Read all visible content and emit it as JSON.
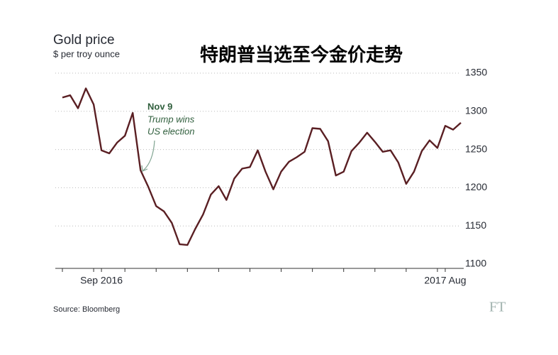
{
  "chart_data": {
    "type": "line",
    "title": "Gold price",
    "subtitle": "$ per troy ounce",
    "headline": "特朗普当选至今金价走势",
    "source": "Source: Bloomberg",
    "brand": "FT",
    "annotation": {
      "title": "Nov 9",
      "lines": [
        "Trump wins",
        "US election"
      ]
    },
    "categories": [
      null,
      null,
      null,
      null,
      null,
      "Sep 2016",
      null,
      null,
      null,
      null,
      null,
      null,
      null,
      null,
      null,
      null,
      null,
      null,
      null,
      null,
      null,
      null,
      null,
      null,
      null,
      null,
      null,
      null,
      null,
      null,
      null,
      null,
      null,
      null,
      null,
      null,
      null,
      null,
      null,
      null,
      null,
      null,
      null,
      null,
      null,
      null,
      null,
      null,
      null,
      "2017 Aug",
      null,
      null
    ],
    "values": [
      1318,
      1321,
      1304,
      1330,
      1309,
      1249,
      1245,
      1259,
      1268,
      1298,
      1223,
      1201,
      1176,
      1169,
      1154,
      1126,
      1125,
      1146,
      1165,
      1191,
      1202,
      1184,
      1212,
      1225,
      1227,
      1249,
      1221,
      1198,
      1221,
      1234,
      1240,
      1247,
      1278,
      1277,
      1261,
      1216,
      1221,
      1248,
      1259,
      1272,
      1260,
      1247,
      1249,
      1233,
      1205,
      1221,
      1248,
      1262,
      1252,
      1281,
      1276,
      1285
    ],
    "color": "#5a1f23",
    "ylim": [
      1100,
      1350
    ],
    "yticks": [
      1100,
      1150,
      1200,
      1250,
      1300,
      1350
    ],
    "grid": true
  }
}
